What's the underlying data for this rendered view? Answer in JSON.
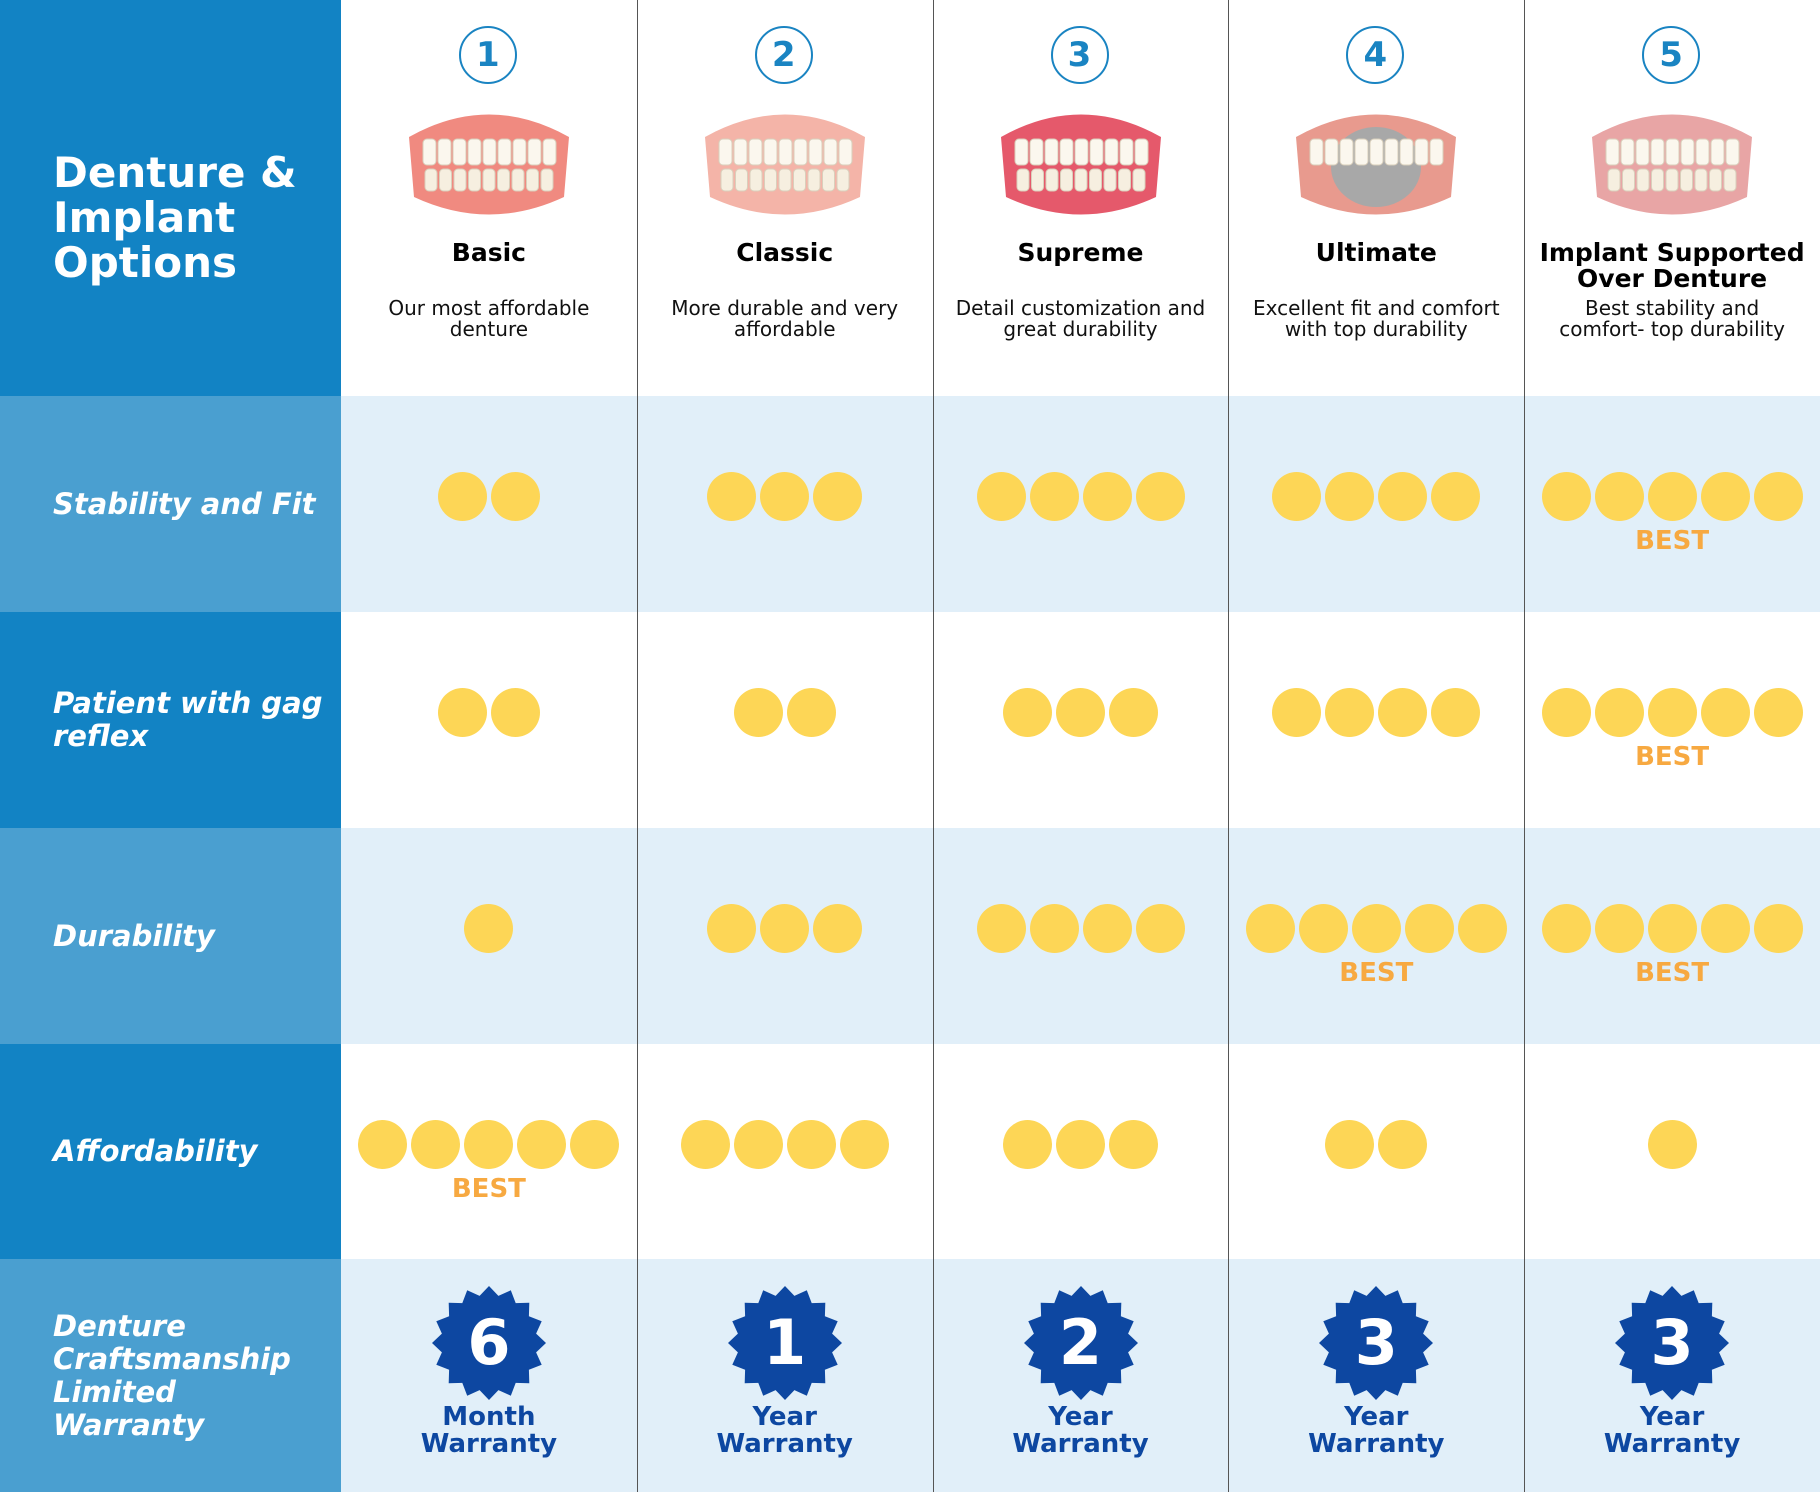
{
  "title": "Denture & Implant Options",
  "options": [
    {
      "number": 1,
      "name": "Basic",
      "description": "Our most affordable denture",
      "warranty": {
        "number": 6,
        "unit": "Month",
        "label": "Warranty"
      }
    },
    {
      "number": 2,
      "name": "Classic",
      "description": "More durable and very affordable",
      "warranty": {
        "number": 1,
        "unit": "Year",
        "label": "Warranty"
      }
    },
    {
      "number": 3,
      "name": "Supreme",
      "description": "Detail customization and great durability",
      "warranty": {
        "number": 2,
        "unit": "Year",
        "label": "Warranty"
      }
    },
    {
      "number": 4,
      "name": "Ultimate",
      "description": "Excellent fit and comfort with top durability",
      "warranty": {
        "number": 3,
        "unit": "Year",
        "label": "Warranty"
      }
    },
    {
      "number": 5,
      "name": "Implant Supported Over Denture",
      "description": "Best stability and comfort- top durability",
      "warranty": {
        "number": 3,
        "unit": "Year",
        "label": "Warranty"
      }
    }
  ],
  "rows": [
    {
      "label": "Stability and Fit",
      "ratings": [
        2,
        3,
        4,
        4,
        5
      ],
      "badges": [
        null,
        null,
        null,
        null,
        "BEST"
      ]
    },
    {
      "label": "Patient with gag reflex",
      "ratings": [
        2,
        2,
        3,
        4,
        5
      ],
      "badges": [
        null,
        null,
        null,
        null,
        "BEST"
      ]
    },
    {
      "label": "Durability",
      "ratings": [
        1,
        3,
        4,
        5,
        5
      ],
      "badges": [
        null,
        null,
        null,
        "BEST",
        "BEST"
      ]
    },
    {
      "label": "Affordability",
      "ratings": [
        5,
        4,
        3,
        2,
        1
      ],
      "badges": [
        "BEST",
        null,
        null,
        null,
        null
      ]
    }
  ],
  "warranty_row": {
    "label": "Denture Craftsmanship Limited Warranty"
  }
}
